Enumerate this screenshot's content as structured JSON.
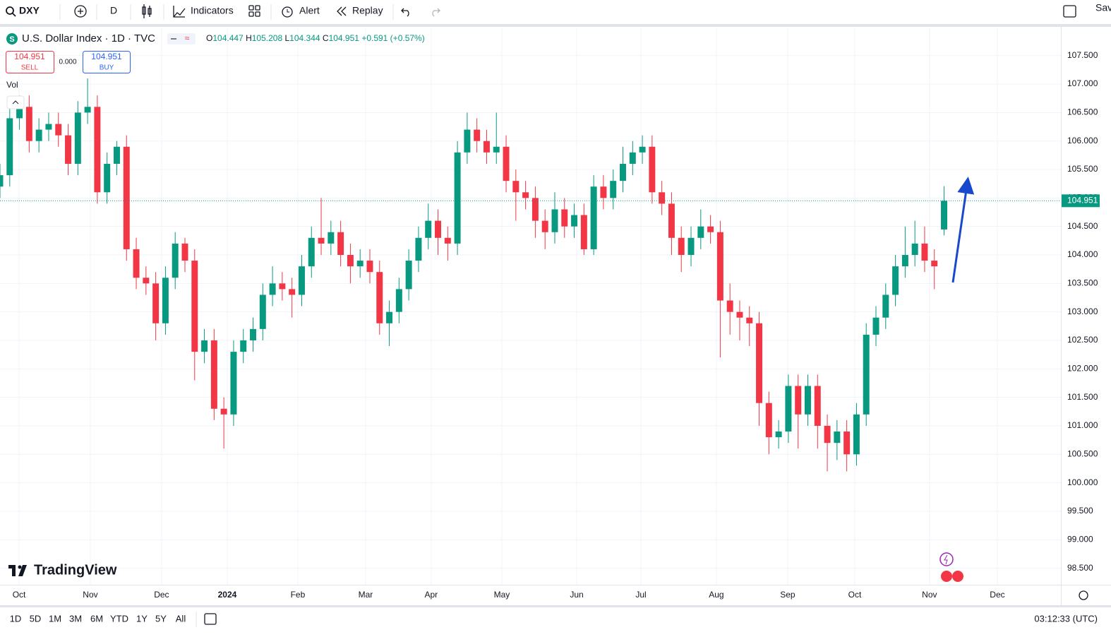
{
  "toolbar": {
    "symbol": "DXY",
    "interval": "D",
    "indicators": "Indicators",
    "alert": "Alert",
    "replay": "Replay",
    "save": "Sav"
  },
  "trade": {
    "sell_price": "104.951",
    "sell": "SELL",
    "spread": "0.000",
    "buy_price": "104.951",
    "buy": "BUY"
  },
  "volume_label": "Vol",
  "logo": "TradingView",
  "timeframes": [
    "1D",
    "5D",
    "1M",
    "3M",
    "6M",
    "YTD",
    "1Y",
    "5Y",
    "All"
  ],
  "clock": "03:12:33 (UTC)",
  "chart_data": {
    "type": "candlestick",
    "title": "U.S. Dollar Index · 1D · TVC",
    "ohlc_legend": [
      {
        "prefix": "O",
        "value": 104.447
      },
      {
        "prefix": "H",
        "value": 105.208
      },
      {
        "prefix": "L",
        "value": 104.344
      },
      {
        "prefix": "C",
        "value": 104.951
      }
    ],
    "change": "+0.591 (+0.57%)",
    "up_color": "#089981",
    "down_color": "#f23645",
    "open": [
      105.2,
      105.4,
      106.4,
      106.6,
      106.0,
      106.2,
      106.3,
      106.1,
      105.6,
      106.5,
      106.6,
      105.1,
      105.6,
      105.9,
      104.1,
      103.6,
      103.5,
      102.8,
      103.6,
      104.2,
      103.9,
      102.3,
      102.5,
      101.3,
      101.2,
      102.3,
      102.5,
      102.7,
      103.3,
      103.5,
      103.4,
      103.3,
      103.8,
      104.3,
      104.2,
      104.4,
      104.0,
      103.8,
      103.9,
      103.7,
      102.8,
      103.0,
      103.4,
      103.9,
      104.3,
      104.6,
      104.3,
      104.2,
      105.8,
      106.2,
      106.0,
      105.8,
      105.9,
      105.3,
      105.1,
      105.0,
      104.6,
      104.4,
      104.8,
      104.5,
      104.7,
      104.1,
      105.2,
      105.0,
      105.3,
      105.6,
      105.8,
      105.9,
      105.1,
      104.9,
      104.3,
      104.0,
      104.3,
      104.5,
      104.4,
      103.2,
      103.0,
      102.9,
      102.8,
      101.4,
      100.8,
      100.9,
      101.7,
      101.2,
      101.7,
      101.0,
      100.7,
      100.9,
      100.5,
      101.2,
      102.6,
      102.9,
      103.3,
      103.8,
      104.0,
      104.2,
      103.9,
      104.447
    ],
    "high": [
      105.6,
      106.6,
      106.8,
      106.8,
      106.4,
      106.5,
      106.5,
      106.3,
      106.7,
      107.1,
      106.8,
      105.8,
      106.0,
      106.1,
      104.3,
      103.8,
      103.7,
      103.8,
      104.4,
      104.3,
      104.1,
      102.7,
      102.7,
      101.5,
      102.5,
      102.7,
      102.9,
      103.5,
      103.8,
      103.7,
      103.6,
      104.0,
      104.5,
      105.0,
      104.6,
      104.6,
      104.2,
      104.1,
      104.1,
      103.9,
      103.2,
      103.6,
      104.1,
      104.5,
      104.9,
      104.8,
      104.5,
      106.0,
      106.5,
      106.4,
      106.2,
      106.5,
      106.1,
      105.5,
      105.3,
      105.2,
      104.8,
      105.1,
      105.0,
      104.9,
      104.9,
      105.4,
      105.4,
      105.5,
      105.9,
      106.0,
      106.1,
      106.1,
      105.3,
      105.1,
      104.5,
      104.5,
      104.8,
      104.7,
      104.6,
      103.5,
      103.2,
      103.1,
      103.0,
      101.6,
      101.1,
      101.9,
      101.9,
      101.9,
      101.9,
      101.2,
      101.1,
      101.1,
      101.4,
      102.8,
      103.1,
      103.5,
      104.0,
      104.5,
      104.6,
      104.5,
      104.1,
      105.208
    ],
    "low": [
      105.0,
      105.2,
      106.2,
      105.8,
      105.8,
      106.0,
      105.9,
      105.4,
      105.4,
      106.3,
      104.9,
      104.9,
      105.4,
      103.9,
      103.4,
      103.3,
      102.5,
      102.6,
      103.4,
      103.7,
      101.8,
      102.1,
      101.1,
      100.6,
      101.0,
      102.1,
      102.3,
      102.5,
      103.1,
      103.2,
      102.9,
      103.1,
      103.6,
      104.0,
      104.0,
      103.8,
      103.5,
      103.6,
      103.5,
      102.6,
      102.4,
      102.8,
      103.2,
      103.7,
      104.1,
      104.0,
      103.9,
      104.0,
      105.6,
      105.8,
      105.6,
      105.6,
      105.1,
      104.6,
      104.8,
      104.3,
      104.1,
      104.2,
      104.3,
      104.3,
      104.0,
      104.0,
      104.8,
      104.8,
      105.1,
      105.4,
      105.6,
      104.9,
      104.7,
      104.0,
      103.7,
      103.8,
      104.1,
      104.2,
      102.2,
      102.6,
      102.5,
      102.4,
      101.0,
      100.5,
      100.6,
      100.7,
      100.6,
      101.0,
      100.6,
      100.2,
      100.4,
      100.2,
      100.3,
      101.0,
      102.4,
      102.7,
      103.1,
      103.6,
      103.8,
      103.7,
      103.4,
      104.344
    ],
    "close": [
      105.4,
      106.4,
      106.6,
      106.0,
      106.2,
      106.3,
      106.1,
      105.6,
      106.5,
      106.6,
      105.1,
      105.6,
      105.9,
      104.1,
      103.6,
      103.5,
      102.8,
      103.6,
      104.2,
      103.9,
      102.3,
      102.5,
      101.3,
      101.2,
      102.3,
      102.5,
      102.7,
      103.3,
      103.5,
      103.4,
      103.3,
      103.8,
      104.3,
      104.2,
      104.4,
      104.0,
      103.8,
      103.9,
      103.7,
      102.8,
      103.0,
      103.4,
      103.9,
      104.3,
      104.6,
      104.3,
      104.2,
      105.8,
      106.2,
      106.0,
      105.8,
      105.9,
      105.3,
      105.1,
      105.0,
      104.6,
      104.4,
      104.8,
      104.5,
      104.7,
      104.1,
      105.2,
      105.0,
      105.3,
      105.6,
      105.8,
      105.9,
      105.1,
      104.9,
      104.3,
      104.0,
      104.3,
      104.5,
      104.4,
      103.2,
      103.0,
      102.9,
      102.8,
      101.4,
      100.8,
      100.9,
      101.7,
      101.2,
      101.7,
      101.0,
      100.7,
      100.9,
      100.5,
      101.2,
      102.6,
      102.9,
      103.3,
      103.8,
      104.0,
      104.2,
      103.9,
      103.8,
      104.951
    ],
    "xlim": [
      0,
      109
    ],
    "xticks": [
      {
        "value": 1.96,
        "label": "Oct"
      },
      {
        "value": 9.28,
        "label": "Nov"
      },
      {
        "value": 16.6,
        "label": "Dec"
      },
      {
        "value": 23.35,
        "label": "2024"
      },
      {
        "value": 30.6,
        "label": "Feb"
      },
      {
        "value": 37.56,
        "label": "Mar"
      },
      {
        "value": 44.3,
        "label": "Apr"
      },
      {
        "value": 51.56,
        "label": "May"
      },
      {
        "value": 59.25,
        "label": "Jun"
      },
      {
        "value": 65.85,
        "label": "Jul"
      },
      {
        "value": 73.6,
        "label": "Aug"
      },
      {
        "value": 80.93,
        "label": "Sep"
      },
      {
        "value": 87.82,
        "label": "Oct"
      },
      {
        "value": 95.5,
        "label": "Nov"
      },
      {
        "value": 102.47,
        "label": "Dec"
      }
    ],
    "ylim": [
      98.21,
      107.98
    ],
    "yticks": [
      {
        "value": 98.5,
        "label": "98.500"
      },
      {
        "value": 99,
        "label": "99.000"
      },
      {
        "value": 99.5,
        "label": "99.500"
      },
      {
        "value": 100,
        "label": "100.000"
      },
      {
        "value": 100.5,
        "label": "100.500"
      },
      {
        "value": 101,
        "label": "101.000"
      },
      {
        "value": 101.5,
        "label": "101.500"
      },
      {
        "value": 102,
        "label": "102.000"
      },
      {
        "value": 102.5,
        "label": "102.500"
      },
      {
        "value": 103,
        "label": "103.000"
      },
      {
        "value": 103.5,
        "label": "103.500"
      },
      {
        "value": 104,
        "label": "104.000"
      },
      {
        "value": 104.5,
        "label": "104.500"
      },
      {
        "value": 105,
        "label": "105.000"
      },
      {
        "value": 105.5,
        "label": "105.500"
      },
      {
        "value": 106,
        "label": "106.000"
      },
      {
        "value": 106.5,
        "label": "106.500"
      },
      {
        "value": 107,
        "label": "107.000"
      },
      {
        "value": 107.5,
        "label": "107.500"
      }
    ],
    "grid": true,
    "last_price_line": true
  }
}
